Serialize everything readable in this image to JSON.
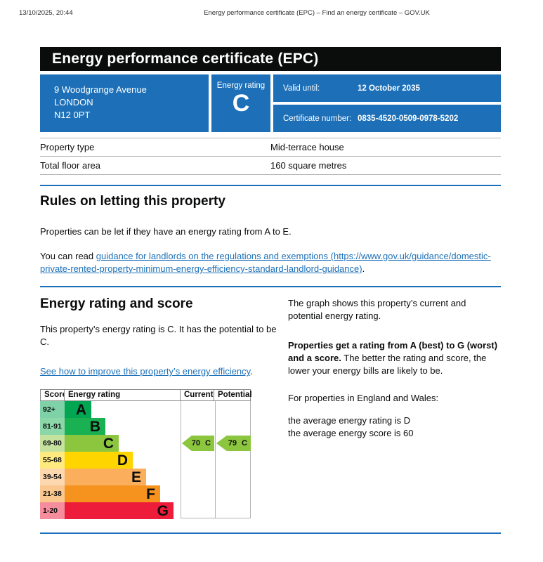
{
  "meta": {
    "datetime": "13/10/2025, 20:44",
    "page_title": "Energy performance certificate (EPC) – Find an energy certificate – GOV.UK"
  },
  "banner": {
    "title": "Energy performance certificate (EPC)"
  },
  "colors": {
    "govuk_blue": "#1d70b8",
    "banner_black": "#0b0c0c",
    "border_grey": "#b1b4b6"
  },
  "certificate": {
    "address_lines": [
      "9 Woodgrange Avenue",
      "LONDON",
      "N12 0PT"
    ],
    "rating_label": "Energy rating",
    "rating_letter": "C",
    "valid_until_label": "Valid until:",
    "valid_until_value": "12 October 2035",
    "certificate_number_label": "Certificate number:",
    "certificate_number_value": "0835-4520-0509-0978-5202"
  },
  "property_details": {
    "rows": [
      {
        "label": "Property type",
        "value": "Mid-terrace house"
      },
      {
        "label": "Total floor area",
        "value": "160 square metres"
      }
    ]
  },
  "rules_section": {
    "heading": "Rules on letting this property",
    "paragraph": "Properties can be let if they have an energy rating from A to E.",
    "link_prefix": "You can read ",
    "link_text": "guidance for landlords on the regulations and exemptions (https://www.gov.uk/guidance/domestic-private-rented-property-minimum-energy-efficiency-standard-landlord-guidance)",
    "link_suffix": "."
  },
  "rating_section": {
    "heading": "Energy rating and score",
    "paragraph": "This property’s energy rating is C. It has the potential to be C.",
    "improve_link": "See how to improve this property’s energy efficiency",
    "improve_suffix": ".",
    "right": {
      "graph_intro": "The graph shows this property’s current and potential energy rating.",
      "rating_bold": "Properties get a rating from A (best) to G (worst) and a score.",
      "rating_rest": " The better the rating and score, the lower your energy bills are likely to be.",
      "avg_intro": "For properties in England and Wales:",
      "avg_rating": "the average energy rating is D",
      "avg_score": "the average energy score is 60"
    }
  },
  "chart_data": {
    "type": "bar",
    "title": "Energy efficiency rating chart",
    "columns": [
      "Score",
      "Energy rating",
      "Current",
      "Potential"
    ],
    "bands": [
      {
        "score": "92+",
        "letter": "A",
        "color": "#00a651",
        "tint": "#7fd2a7"
      },
      {
        "score": "81-91",
        "letter": "B",
        "color": "#19b152",
        "tint": "#8bd7a8"
      },
      {
        "score": "69-80",
        "letter": "C",
        "color": "#8cc63f",
        "tint": "#c5e29e"
      },
      {
        "score": "55-68",
        "letter": "D",
        "color": "#ffd500",
        "tint": "#ffea7f"
      },
      {
        "score": "39-54",
        "letter": "E",
        "color": "#fbaf5d",
        "tint": "#fdd7ae"
      },
      {
        "score": "21-38",
        "letter": "F",
        "color": "#f6921e",
        "tint": "#fac88e"
      },
      {
        "score": "1-20",
        "letter": "G",
        "color": "#ed1c3b",
        "tint": "#f58d9d"
      }
    ],
    "current": {
      "label": "70 C",
      "score": 70,
      "band": "C",
      "band_index": 2,
      "color": "#8cc63f"
    },
    "potential": {
      "label": "79 C",
      "score": 79,
      "band": "C",
      "band_index": 2,
      "color": "#8cc63f"
    }
  }
}
